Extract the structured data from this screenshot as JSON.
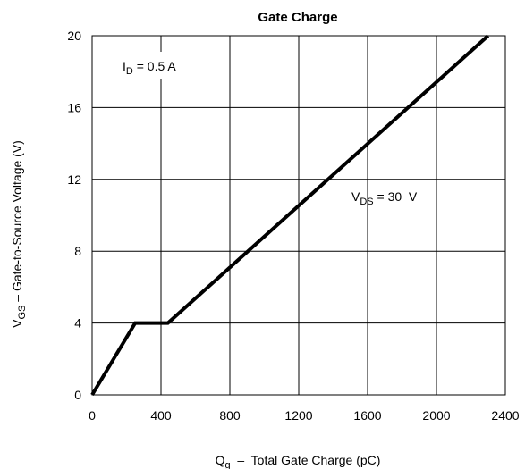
{
  "chart_data": {
    "type": "line",
    "title": "Gate Charge",
    "xlabel": {
      "main": "Q",
      "sub": "g",
      "rest": "  –  Total Gate Charge (pC)"
    },
    "ylabel": {
      "main": "V",
      "sub": "GS",
      "rest": " – Gate-to-Source Voltage (V)"
    },
    "xlim": [
      0,
      2400
    ],
    "ylim": [
      0,
      20
    ],
    "xticks": [
      "0",
      "400",
      "800",
      "1200",
      "1600",
      "2000",
      "2400"
    ],
    "yticks": [
      "0",
      "4",
      "8",
      "12",
      "16",
      "20"
    ],
    "grid": true,
    "series": [
      {
        "x": [
          0,
          250,
          440,
          2300
        ],
        "y": [
          0,
          4,
          4,
          20
        ]
      }
    ],
    "annotations": [
      {
        "main": "I",
        "sub": "D",
        "rest": " = 0.5 A"
      },
      {
        "main": "V",
        "sub": "DS",
        "rest": " = 30  V"
      }
    ],
    "colors": {
      "line": "#000000",
      "grid": "#000000"
    }
  }
}
